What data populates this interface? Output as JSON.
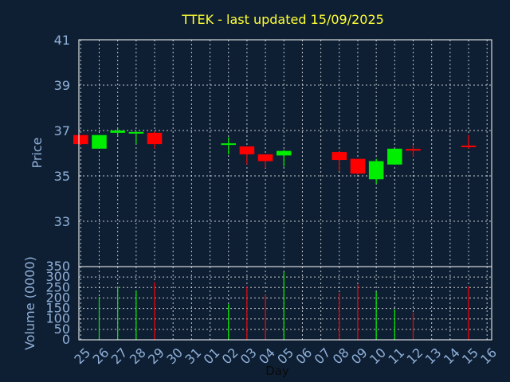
{
  "chart_data": {
    "type": "candlestick",
    "title": "TTEK - last updated 15/09/2025",
    "xlabel": "Day",
    "price_panel": {
      "ylabel": "Price",
      "ylim": [
        31,
        41
      ],
      "yticks": [
        33,
        35,
        37,
        39,
        41
      ],
      "grid": true
    },
    "volume_panel": {
      "ylabel": "Volume (0000)",
      "ylim": [
        0,
        350
      ],
      "yticks": [
        0,
        50,
        100,
        150,
        200,
        250,
        300,
        350
      ],
      "grid": true
    },
    "categories": [
      "25",
      "26",
      "27",
      "28",
      "29",
      "30",
      "31",
      "01",
      "02",
      "03",
      "04",
      "05",
      "06",
      "07",
      "08",
      "09",
      "10",
      "11",
      "12",
      "13",
      "14",
      "15",
      "16"
    ],
    "colors": {
      "up": "#00ee00",
      "down": "#ff0000",
      "title": "#ffff33",
      "axis_text": "#8fb0d9",
      "background": "#0f1f33"
    },
    "candles": [
      {
        "day": "25",
        "open": 36.8,
        "high": 36.8,
        "low": 36.35,
        "close": 36.4
      },
      {
        "day": "26",
        "open": 36.2,
        "high": 36.8,
        "low": 36.2,
        "close": 36.8
      },
      {
        "day": "27",
        "open": 36.9,
        "high": 37.1,
        "low": 36.75,
        "close": 37.0
      },
      {
        "day": "28",
        "open": 36.85,
        "high": 36.95,
        "low": 36.4,
        "close": 36.9
      },
      {
        "day": "29",
        "open": 36.9,
        "high": 36.95,
        "low": 36.2,
        "close": 36.4
      },
      {
        "day": "02",
        "open": 36.35,
        "high": 36.7,
        "low": 35.95,
        "close": 36.4
      },
      {
        "day": "03",
        "open": 36.3,
        "high": 36.3,
        "low": 35.5,
        "close": 35.95
      },
      {
        "day": "04",
        "open": 35.95,
        "high": 35.95,
        "low": 35.35,
        "close": 35.65
      },
      {
        "day": "05",
        "open": 35.9,
        "high": 36.15,
        "low": 35.4,
        "close": 36.1
      },
      {
        "day": "08",
        "open": 36.05,
        "high": 36.1,
        "low": 35.2,
        "close": 35.7
      },
      {
        "day": "09",
        "open": 35.75,
        "high": 35.75,
        "low": 35.05,
        "close": 35.1
      },
      {
        "day": "10",
        "open": 34.85,
        "high": 35.75,
        "low": 34.65,
        "close": 35.65
      },
      {
        "day": "11",
        "open": 35.5,
        "high": 36.2,
        "low": 35.5,
        "close": 36.2
      },
      {
        "day": "12",
        "open": 36.15,
        "high": 36.35,
        "low": 35.85,
        "close": 36.1
      },
      {
        "day": "15",
        "open": 36.3,
        "high": 36.8,
        "low": 36.2,
        "close": 36.25
      }
    ],
    "volume": [
      {
        "day": "26",
        "value": 205,
        "color": "up"
      },
      {
        "day": "27",
        "value": 255,
        "color": "up"
      },
      {
        "day": "28",
        "value": 235,
        "color": "up"
      },
      {
        "day": "29",
        "value": 275,
        "color": "down"
      },
      {
        "day": "02",
        "value": 170,
        "color": "up"
      },
      {
        "day": "03",
        "value": 255,
        "color": "down"
      },
      {
        "day": "04",
        "value": 215,
        "color": "down"
      },
      {
        "day": "05",
        "value": 325,
        "color": "up"
      },
      {
        "day": "08",
        "value": 225,
        "color": "down"
      },
      {
        "day": "09",
        "value": 265,
        "color": "down"
      },
      {
        "day": "10",
        "value": 230,
        "color": "up"
      },
      {
        "day": "11",
        "value": 145,
        "color": "up"
      },
      {
        "day": "12",
        "value": 130,
        "color": "down"
      },
      {
        "day": "15",
        "value": 255,
        "color": "down"
      }
    ]
  }
}
